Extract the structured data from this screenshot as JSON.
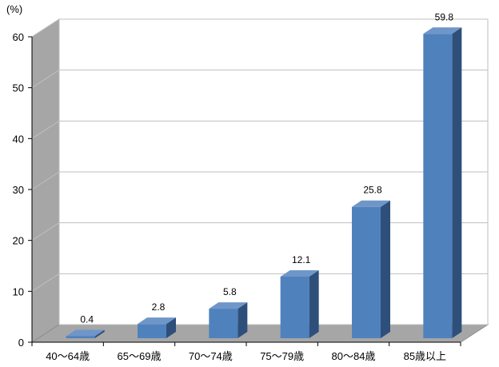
{
  "chart_data": {
    "type": "bar",
    "unit_label": "(%)",
    "categories": [
      "40～64歳",
      "65～69歳",
      "70～74歳",
      "75～79歳",
      "80～84歳",
      "85歳以上"
    ],
    "values": [
      0.4,
      2.8,
      5.8,
      12.1,
      25.8,
      59.8
    ],
    "value_labels": [
      "0.4",
      "2.8",
      "5.8",
      "12.1",
      "25.8",
      "59.8"
    ],
    "ylim": [
      0,
      60
    ],
    "yticks": [
      0,
      10,
      20,
      30,
      40,
      50,
      60
    ],
    "ytick_labels": [
      "0",
      "10",
      "20",
      "30",
      "40",
      "50",
      "60"
    ],
    "grid": true,
    "legend": "none",
    "style": "3d",
    "colors": {
      "bar_front": "#4F81BD",
      "bar_top": "#6F96C9",
      "bar_side": "#2E4F7A",
      "wall": "#A6A6A6",
      "floor": "#A6A6A6",
      "grid": "#BFBFBF"
    }
  }
}
